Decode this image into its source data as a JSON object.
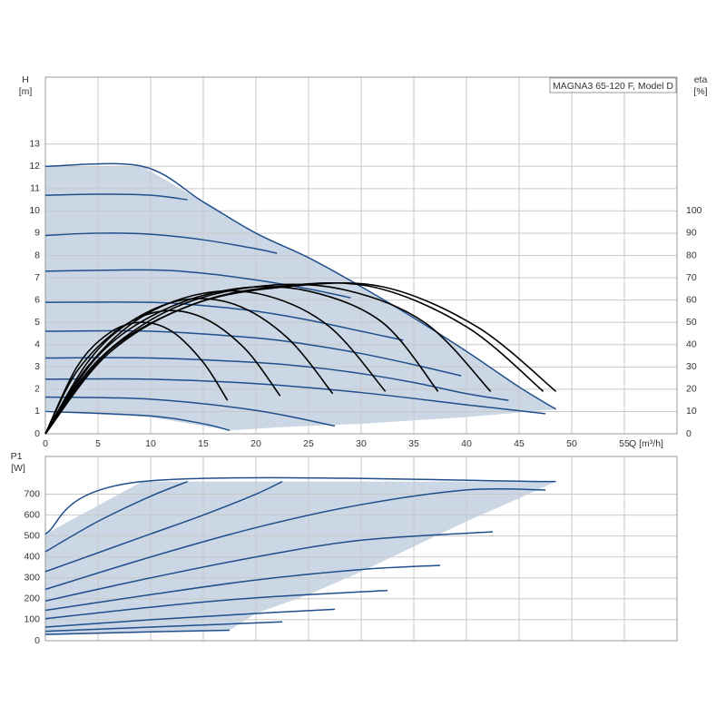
{
  "chart_data": [
    {
      "type": "line",
      "title": "MAGNA3 65-120 F, Model D",
      "ylabel": "H",
      "yunit": "[m]",
      "y2label": "eta",
      "y2unit": "[%]",
      "xlabel": "Q [m³/h]",
      "xlim": [
        0,
        60
      ],
      "xticks": [
        0,
        5,
        10,
        15,
        20,
        25,
        30,
        35,
        40,
        45,
        50,
        55
      ],
      "ylim": [
        0,
        16
      ],
      "yticks": [
        0,
        1,
        2,
        3,
        4,
        5,
        6,
        7,
        8,
        9,
        10,
        11,
        12,
        13
      ],
      "y2lim": [
        0,
        160
      ],
      "y2ticks": [
        0,
        10,
        20,
        30,
        40,
        50,
        60,
        70,
        80,
        90,
        100
      ],
      "grid": true,
      "regions": [
        {
          "color": "#cbd7e4",
          "x": [
            0,
            9.2,
            15,
            20,
            25,
            30,
            35,
            40,
            45,
            48.5,
            40,
            30,
            22.5,
            17.5,
            10,
            0
          ],
          "values": [
            12,
            12,
            10.4,
            9,
            7.9,
            6.6,
            5.2,
            3.7,
            2.1,
            1.1,
            0.75,
            0.45,
            0.3,
            0.15,
            0.75,
            1.0
          ]
        }
      ],
      "series": [
        {
          "color": "#1f4e8c",
          "x": [
            0,
            9.2,
            15,
            20,
            25,
            30,
            35,
            40,
            45,
            48.5
          ],
          "values": [
            12,
            12,
            10.4,
            9,
            7.9,
            6.6,
            5.2,
            3.7,
            2.1,
            1.1
          ]
        },
        {
          "color": "#1f4e8c",
          "x": [
            0,
            5,
            10,
            13.5
          ],
          "values": [
            10.7,
            10.75,
            10.7,
            10.5
          ]
        },
        {
          "color": "#1f4e8c",
          "x": [
            0,
            5,
            10,
            15,
            20,
            22
          ],
          "values": [
            8.9,
            9.0,
            8.95,
            8.7,
            8.3,
            8.1
          ]
        },
        {
          "color": "#1f4e8c",
          "x": [
            0,
            10,
            15,
            20,
            25,
            29
          ],
          "values": [
            7.3,
            7.35,
            7.2,
            6.9,
            6.5,
            6.1
          ]
        },
        {
          "color": "#1f4e8c",
          "x": [
            0,
            10,
            15,
            20,
            25,
            30,
            34
          ],
          "values": [
            5.9,
            5.9,
            5.75,
            5.5,
            5.1,
            4.6,
            4.2
          ]
        },
        {
          "color": "#1f4e8c",
          "x": [
            0,
            10,
            20,
            25,
            30,
            35,
            39.5
          ],
          "values": [
            4.6,
            4.6,
            4.3,
            4.0,
            3.6,
            3.1,
            2.6
          ]
        },
        {
          "color": "#1f4e8c",
          "x": [
            0,
            10,
            20,
            25,
            30,
            35,
            40,
            44
          ],
          "values": [
            3.4,
            3.4,
            3.2,
            3.0,
            2.7,
            2.3,
            1.8,
            1.5
          ]
        },
        {
          "color": "#1f4e8c",
          "x": [
            0,
            10,
            20,
            30,
            40,
            47.5
          ],
          "values": [
            2.45,
            2.45,
            2.25,
            1.85,
            1.3,
            0.9
          ]
        },
        {
          "color": "#1f4e8c",
          "x": [
            0,
            10,
            20,
            27.5
          ],
          "values": [
            1.65,
            1.55,
            1.05,
            0.35
          ]
        },
        {
          "color": "#1f4e8c",
          "x": [
            0,
            10,
            15,
            17.5
          ],
          "values": [
            1.0,
            0.8,
            0.45,
            0.15
          ]
        },
        {
          "color": "#000000",
          "axis": "y2",
          "x": [
            0,
            3,
            6,
            9,
            12,
            15,
            17.3
          ],
          "values": [
            0,
            30,
            45,
            50,
            46,
            32,
            15
          ]
        },
        {
          "color": "#000000",
          "axis": "y2",
          "x": [
            0,
            3,
            7,
            11,
            15,
            19,
            22.3
          ],
          "values": [
            0,
            28,
            47,
            55,
            52,
            38,
            17
          ]
        },
        {
          "color": "#000000",
          "axis": "y2",
          "x": [
            0,
            4,
            8,
            13,
            18,
            23,
            27.3
          ],
          "values": [
            0,
            32,
            50,
            60,
            58,
            43,
            18
          ]
        },
        {
          "color": "#000000",
          "axis": "y2",
          "x": [
            0,
            4,
            9,
            15,
            21,
            27,
            32.3
          ],
          "values": [
            0,
            30,
            52,
            63,
            62,
            48,
            19
          ]
        },
        {
          "color": "#000000",
          "axis": "y2",
          "x": [
            0,
            5,
            11,
            18,
            25,
            32,
            37.3
          ],
          "values": [
            0,
            35,
            55,
            65,
            64,
            50,
            19
          ]
        },
        {
          "color": "#000000",
          "axis": "y2",
          "x": [
            0,
            5,
            12,
            20,
            28,
            36,
            42.3
          ],
          "values": [
            0,
            33,
            56,
            66,
            65,
            50,
            19
          ]
        },
        {
          "color": "#000000",
          "axis": "y2",
          "x": [
            0,
            6,
            14,
            22,
            31,
            40,
            47.3
          ],
          "values": [
            0,
            37,
            58,
            66,
            66,
            48,
            19
          ]
        },
        {
          "color": "#000000",
          "axis": "y2",
          "x": [
            0,
            6,
            14,
            23,
            32,
            41,
            48.5
          ],
          "values": [
            0,
            36,
            58,
            66,
            66,
            48,
            19
          ]
        }
      ]
    },
    {
      "type": "line",
      "ylabel": "P1",
      "yunit": "[W]",
      "xlim": [
        0,
        60
      ],
      "xticks": [
        0,
        5,
        10,
        15,
        20,
        25,
        30,
        35,
        40,
        45,
        50,
        55
      ],
      "ylim": [
        0,
        880
      ],
      "yticks": [
        0,
        100,
        200,
        300,
        400,
        500,
        600,
        700
      ],
      "grid": true,
      "regions": [
        {
          "color": "#cbd7e4",
          "x": [
            0,
            9.2,
            48.5,
            45,
            40,
            35,
            30,
            25,
            20,
            17.5,
            10,
            0
          ],
          "values": [
            510,
            760,
            760,
            680,
            570,
            450,
            330,
            220,
            130,
            50,
            45,
            30
          ]
        }
      ],
      "series": [
        {
          "color": "#1f4e8c",
          "x": [
            0,
            9.2,
            48.5
          ],
          "values": [
            510,
            760,
            760
          ]
        },
        {
          "color": "#1f4e8c",
          "x": [
            0,
            5,
            10,
            13.5
          ],
          "values": [
            425,
            570,
            690,
            760
          ]
        },
        {
          "color": "#1f4e8c",
          "x": [
            0,
            5,
            10,
            15,
            20,
            22.5
          ],
          "values": [
            330,
            420,
            510,
            600,
            700,
            760
          ]
        },
        {
          "color": "#1f4e8c",
          "x": [
            0,
            10,
            20,
            30,
            40,
            47.5
          ],
          "values": [
            245,
            400,
            540,
            650,
            720,
            720
          ]
        },
        {
          "color": "#1f4e8c",
          "x": [
            0,
            10,
            20,
            30,
            42.5
          ],
          "values": [
            190,
            300,
            400,
            480,
            520
          ]
        },
        {
          "color": "#1f4e8c",
          "x": [
            0,
            10,
            20,
            30,
            37.5
          ],
          "values": [
            145,
            220,
            290,
            340,
            360
          ]
        },
        {
          "color": "#1f4e8c",
          "x": [
            0,
            10,
            20,
            32.5
          ],
          "values": [
            105,
            160,
            205,
            240
          ]
        },
        {
          "color": "#1f4e8c",
          "x": [
            0,
            10,
            20,
            27.5
          ],
          "values": [
            65,
            100,
            130,
            150
          ]
        },
        {
          "color": "#1f4e8c",
          "x": [
            0,
            10,
            22.5
          ],
          "values": [
            45,
            65,
            90
          ]
        },
        {
          "color": "#1f4e8c",
          "x": [
            0,
            10,
            17.5
          ],
          "values": [
            30,
            42,
            50
          ]
        }
      ]
    }
  ]
}
